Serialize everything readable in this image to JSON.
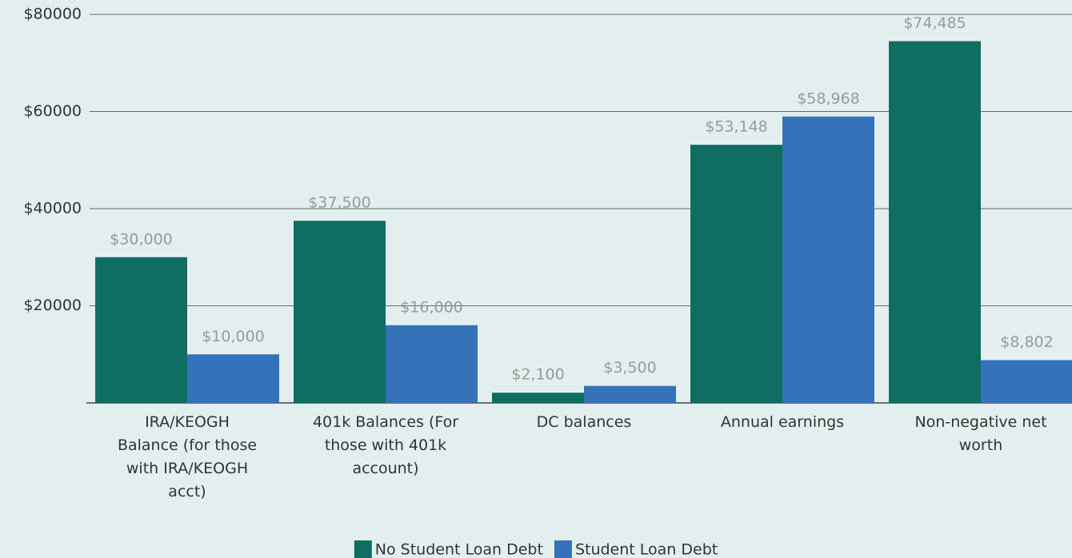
{
  "chart_data": {
    "type": "bar",
    "categories": [
      "IRA/KEOGH\nBalance (for those\nwith IRA/KEOGH\nacct)",
      "401k Balances (For\nthose with 401k\naccount)",
      "DC balances",
      "Annual earnings",
      "Non-negative net\nworth"
    ],
    "series": [
      {
        "name": "No Student Loan Debt",
        "color": "#0f6e61",
        "values": [
          30000,
          37500,
          2100,
          53148,
          74485
        ],
        "value_labels": [
          "$30,000",
          "$37,500",
          "$2,100",
          "$53,148",
          "$74,485"
        ]
      },
      {
        "name": "Student Loan Debt",
        "color": "#3672b9",
        "values": [
          10000,
          16000,
          3500,
          58968,
          8802
        ],
        "value_labels": [
          "$10,000",
          "$16,000",
          "$3,500",
          "$58,968",
          "$8,802"
        ]
      }
    ],
    "ylim": [
      0,
      80000
    ],
    "yticks": [
      {
        "value": 20000,
        "label": "$20000"
      },
      {
        "value": 40000,
        "label": "$40000"
      },
      {
        "value": 60000,
        "label": "$60000"
      },
      {
        "value": 80000,
        "label": "$80000"
      }
    ],
    "grid": true,
    "legend": "bottom"
  }
}
